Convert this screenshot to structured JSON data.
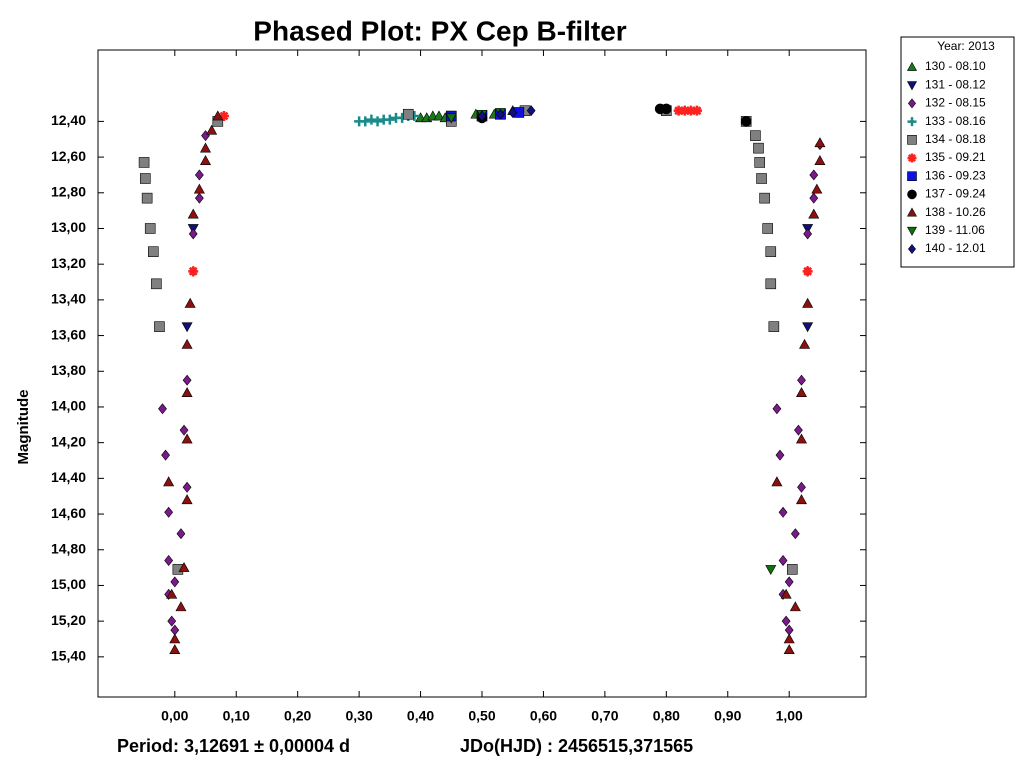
{
  "chart_data": {
    "type": "scatter",
    "title": "Phased Plot: PX Cep B-filter",
    "y_label": "Magnitude",
    "annotations": [
      "Period: 3,12691 ± 0,00004 d",
      "JDo(HJD) : 2456515,371565"
    ],
    "legend_title": "Year: 2013",
    "legend_position": "outside-top-right",
    "y_inverted": true,
    "xlim": [
      -0.125,
      1.125
    ],
    "ylim": [
      12.0,
      15.625
    ],
    "xticks": [
      {
        "value": 0,
        "label": "0,00"
      },
      {
        "value": 0.1,
        "label": "0,10"
      },
      {
        "value": 0.2,
        "label": "0,20"
      },
      {
        "value": 0.3,
        "label": "0,30"
      },
      {
        "value": 0.4,
        "label": "0,40"
      },
      {
        "value": 0.5,
        "label": "0,50"
      },
      {
        "value": 0.6,
        "label": "0,60"
      },
      {
        "value": 0.7,
        "label": "0,70"
      },
      {
        "value": 0.8,
        "label": "0,80"
      },
      {
        "value": 0.9,
        "label": "0,90"
      },
      {
        "value": 1,
        "label": "1,00"
      }
    ],
    "yticks": [
      {
        "value": 12.4,
        "label": "12,40"
      },
      {
        "value": 12.6,
        "label": "12,60"
      },
      {
        "value": 12.8,
        "label": "12,80"
      },
      {
        "value": 13.0,
        "label": "13,00"
      },
      {
        "value": 13.2,
        "label": "13,20"
      },
      {
        "value": 13.4,
        "label": "13,40"
      },
      {
        "value": 13.6,
        "label": "13,60"
      },
      {
        "value": 13.8,
        "label": "13,80"
      },
      {
        "value": 14.0,
        "label": "14,00"
      },
      {
        "value": 14.2,
        "label": "14,20"
      },
      {
        "value": 14.4,
        "label": "14,40"
      },
      {
        "value": 14.6,
        "label": "14,60"
      },
      {
        "value": 14.8,
        "label": "14,80"
      },
      {
        "value": 15.0,
        "label": "15,00"
      },
      {
        "value": 15.2,
        "label": "15,20"
      },
      {
        "value": 15.4,
        "label": "15,40"
      }
    ],
    "series": [
      {
        "name": "130 - 08.10",
        "color": "#1a7a1a",
        "marker": "triangle-up",
        "x": [
          0.4,
          0.41,
          0.42,
          0.43,
          0.44,
          0.45,
          0.49,
          0.52,
          0.55
        ],
        "values": [
          12.38,
          12.38,
          12.37,
          12.37,
          12.38,
          12.39,
          12.36,
          12.36,
          12.34
        ]
      },
      {
        "name": "131 - 08.12",
        "color": "#10107a",
        "marker": "triangle-down",
        "x": [
          0.02,
          0.03,
          1.03,
          1.03,
          0.45,
          0.5
        ],
        "values": [
          13.55,
          13.0,
          13.55,
          13.0,
          12.37,
          12.38
        ]
      },
      {
        "name": "132 - 08.15",
        "color": "#7a1a8a",
        "marker": "diamond",
        "x": [
          -0.02,
          -0.015,
          -0.01,
          -0.01,
          0.0,
          0.01,
          0.015,
          0.02,
          0.02,
          0.03,
          0.03,
          0.04,
          0.04,
          0.05,
          -0.005,
          0.0,
          -0.01,
          0.98,
          0.985,
          0.99,
          0.99,
          1.0,
          1.01,
          1.015,
          1.02,
          1.02,
          1.03,
          1.03,
          1.04,
          1.04,
          1.05,
          0.995,
          1.0,
          0.99
        ],
        "values": [
          14.01,
          14.27,
          14.59,
          14.86,
          14.98,
          14.71,
          14.13,
          13.85,
          14.45,
          13.24,
          13.03,
          12.83,
          12.7,
          12.48,
          15.2,
          15.25,
          15.05,
          14.01,
          14.27,
          14.59,
          14.86,
          14.98,
          14.71,
          14.13,
          13.85,
          14.45,
          13.24,
          13.03,
          12.83,
          12.7,
          12.53,
          15.2,
          15.25,
          15.05
        ]
      },
      {
        "name": "133 - 08.16",
        "color": "#1a8a8a",
        "marker": "plus",
        "x": [
          0.3,
          0.31,
          0.32,
          0.33,
          0.34,
          0.35,
          0.36,
          0.37,
          0.38,
          0.39
        ],
        "values": [
          12.4,
          12.4,
          12.39,
          12.4,
          12.39,
          12.39,
          12.38,
          12.38,
          12.37,
          12.37
        ]
      },
      {
        "name": "134 - 08.18",
        "color": "#808080",
        "marker": "square",
        "x": [
          -0.05,
          -0.048,
          -0.045,
          -0.04,
          -0.035,
          -0.03,
          -0.025,
          0.005,
          0.07,
          0.38,
          0.45,
          0.53,
          0.57,
          0.8,
          0.93,
          0.945,
          0.95,
          0.952,
          0.955,
          0.96,
          0.965,
          0.97,
          0.97,
          0.975,
          1.005
        ],
        "values": [
          12.63,
          12.72,
          12.83,
          13.0,
          13.13,
          13.31,
          13.55,
          14.91,
          12.4,
          12.36,
          12.4,
          12.36,
          12.34,
          12.34,
          12.4,
          12.48,
          12.55,
          12.63,
          12.72,
          12.83,
          13.0,
          13.13,
          13.31,
          13.55,
          14.91
        ]
      },
      {
        "name": "135 - 09.21",
        "color": "#ff2020",
        "marker": "star",
        "x": [
          0.82,
          0.83,
          0.84,
          0.85,
          0.03,
          1.03,
          0.08
        ],
        "values": [
          12.34,
          12.34,
          12.34,
          12.34,
          13.24,
          13.24,
          12.37
        ]
      },
      {
        "name": "136 - 09.23",
        "color": "#1010e0",
        "marker": "square",
        "x": [
          0.45,
          0.5,
          0.53,
          0.56
        ],
        "values": [
          12.37,
          12.37,
          12.36,
          12.35
        ]
      },
      {
        "name": "137 - 09.24",
        "color": "#000000",
        "marker": "circle",
        "x": [
          0.79,
          0.8,
          0.93,
          0.5
        ],
        "values": [
          12.33,
          12.33,
          12.4,
          12.38
        ]
      },
      {
        "name": "138 - 10.26",
        "color": "#8b1010",
        "marker": "triangle-up",
        "x": [
          -0.01,
          0.02,
          0.02,
          0.02,
          0.025,
          0.03,
          0.04,
          0.05,
          0.05,
          0.06,
          0.07,
          0.01,
          -0.005,
          0.0,
          0.0,
          0.02,
          0.015,
          0.98,
          1.02,
          1.02,
          1.025,
          1.03,
          1.04,
          1.045,
          1.05,
          1.05,
          1.02,
          1.01,
          0.995,
          1.0,
          1.0
        ],
        "values": [
          14.42,
          14.18,
          13.92,
          13.65,
          13.42,
          12.92,
          12.78,
          12.62,
          12.55,
          12.45,
          12.37,
          15.12,
          15.05,
          15.3,
          15.36,
          14.52,
          14.9,
          14.42,
          14.18,
          13.92,
          13.65,
          13.42,
          12.92,
          12.78,
          12.62,
          12.52,
          14.52,
          15.12,
          15.05,
          15.3,
          15.36
        ]
      },
      {
        "name": "139 - 11.06",
        "color": "#107010",
        "marker": "triangle-down",
        "x": [
          0.45,
          0.5,
          0.53,
          0.97
        ],
        "values": [
          12.38,
          12.36,
          12.35,
          14.91
        ]
      },
      {
        "name": "140 - 12.01",
        "color": "#101080",
        "marker": "diamond",
        "x": [
          0.5,
          0.53,
          0.55,
          0.58
        ],
        "values": [
          12.37,
          12.36,
          12.35,
          12.34
        ]
      }
    ]
  }
}
